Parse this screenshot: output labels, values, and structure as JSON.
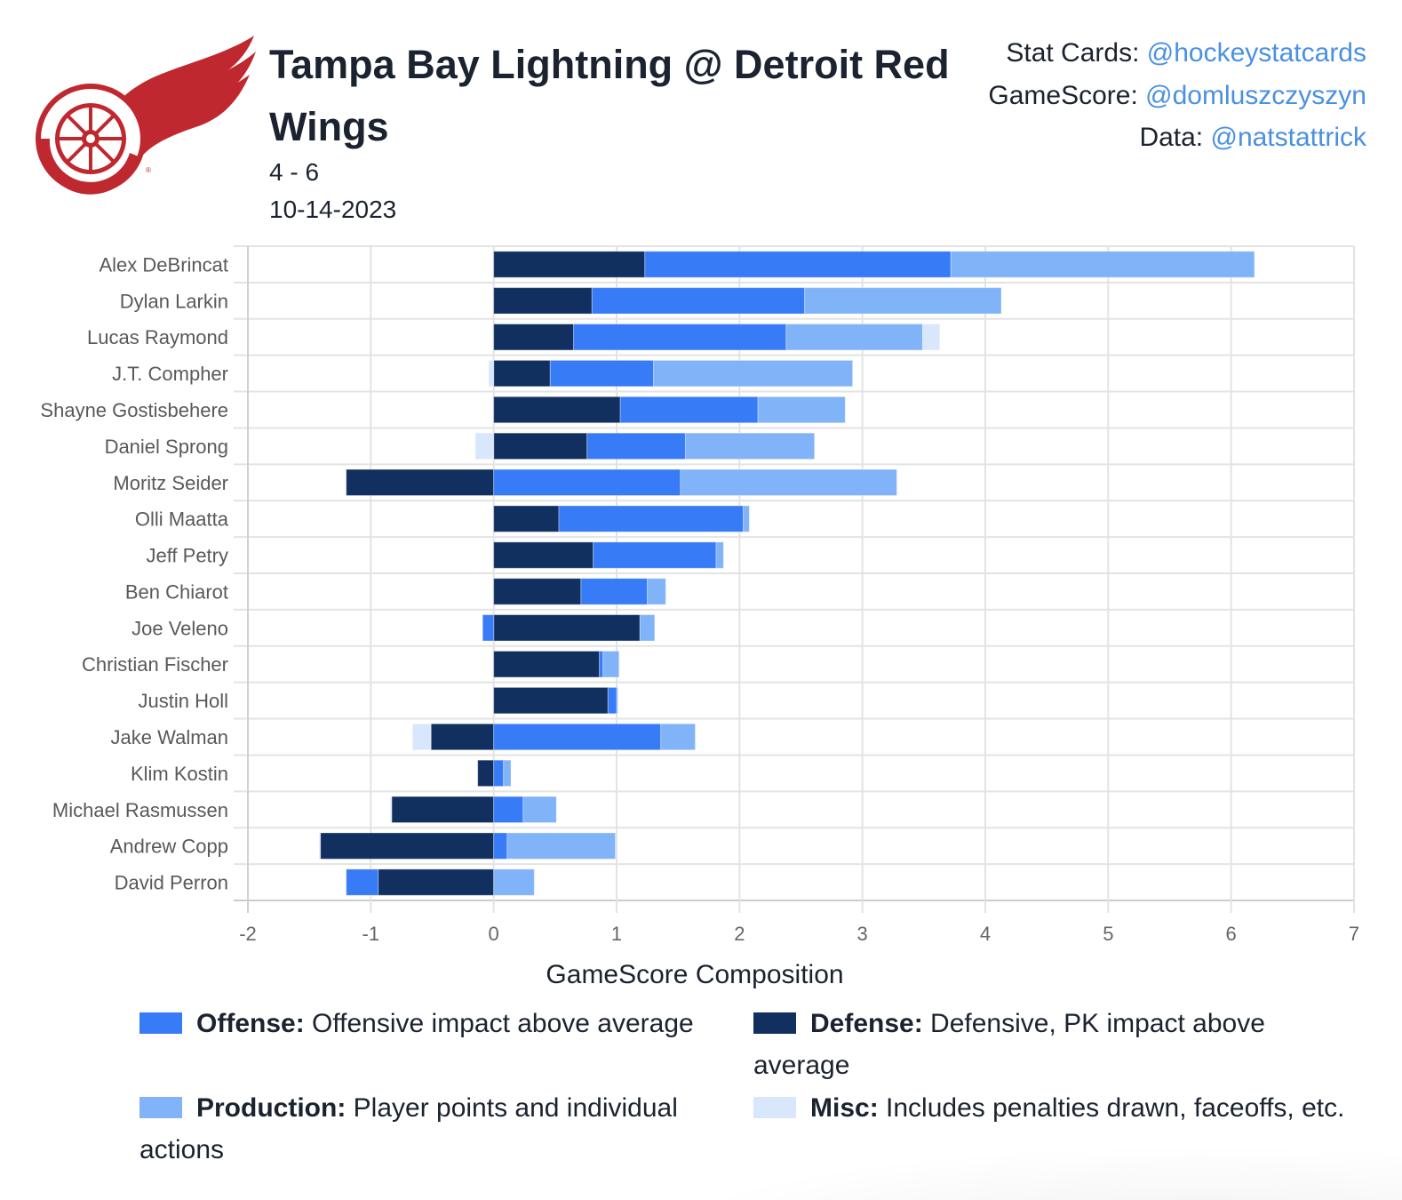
{
  "header": {
    "title": "Tampa Bay Lightning @ Detroit Red Wings",
    "score": "4 - 6",
    "date": "10-14-2023",
    "logo": "detroit-red-wings-logo"
  },
  "credits": [
    {
      "label": "Stat Cards: ",
      "handle": "@hockeystatcards"
    },
    {
      "label": "GameScore: ",
      "handle": "@domluszczyszyn"
    },
    {
      "label": "Data: ",
      "handle": "@natstattrick"
    }
  ],
  "colors": {
    "offense": "#377bf6",
    "defense": "#11305f",
    "production": "#80b3f8",
    "misc": "#d9e7fc",
    "logo_red": "#c0282f",
    "link": "#4a90e2"
  },
  "legend": [
    {
      "key": "offense",
      "label": "Offense:",
      "desc": " Offensive impact above average"
    },
    {
      "key": "defense",
      "label": "Defense:",
      "desc": " Defensive, PK impact above average"
    },
    {
      "key": "production",
      "label": "Production:",
      "desc": " Player points and individual actions"
    },
    {
      "key": "misc",
      "label": "Misc:",
      "desc": " Includes penalties drawn, faceoffs, etc."
    }
  ],
  "chart_data": {
    "type": "bar",
    "orientation": "horizontal-stacked",
    "title": "",
    "xlabel": "GameScore Composition",
    "ylabel": "",
    "xlim": [
      -2,
      7
    ],
    "xticks": [
      -2,
      -1,
      0,
      1,
      2,
      3,
      4,
      5,
      6,
      7
    ],
    "grid": true,
    "legend_position": "bottom",
    "categories": [
      "Alex DeBrincat",
      "Dylan Larkin",
      "Lucas Raymond",
      "J.T. Compher",
      "Shayne Gostisbehere",
      "Daniel Sprong",
      "Moritz Seider",
      "Olli Maatta",
      "Jeff Petry",
      "Ben Chiarot",
      "Joe Veleno",
      "Christian Fischer",
      "Justin Holl",
      "Jake Walman",
      "Klim Kostin",
      "Michael Rasmussen",
      "Andrew Copp",
      "David Perron"
    ],
    "series": [
      {
        "name": "Defense",
        "key": "defense",
        "values": [
          1.23,
          0.8,
          0.65,
          0.46,
          1.03,
          0.76,
          -1.2,
          0.53,
          0.81,
          0.71,
          1.19,
          0.86,
          0.93,
          -0.51,
          -0.13,
          -0.83,
          -1.41,
          -0.94
        ]
      },
      {
        "name": "Offense",
        "key": "offense",
        "values": [
          2.49,
          1.73,
          1.73,
          0.84,
          1.12,
          0.8,
          1.52,
          1.5,
          1.0,
          0.54,
          -0.09,
          0.03,
          0.07,
          1.36,
          0.08,
          0.24,
          0.11,
          -0.26
        ]
      },
      {
        "name": "Production",
        "key": "production",
        "values": [
          2.47,
          1.6,
          1.11,
          1.62,
          0.71,
          1.05,
          1.76,
          0.05,
          0.06,
          0.15,
          0.12,
          0.13,
          0.01,
          0.28,
          0.06,
          0.27,
          0.88,
          0.33
        ]
      },
      {
        "name": "Misc",
        "key": "misc",
        "values": [
          0.0,
          0.0,
          0.14,
          -0.04,
          0.0,
          -0.15,
          0.0,
          0.0,
          0.0,
          0.0,
          0.0,
          0.0,
          0.0,
          -0.15,
          0.0,
          -0.01,
          -0.01,
          0.0
        ]
      }
    ]
  }
}
